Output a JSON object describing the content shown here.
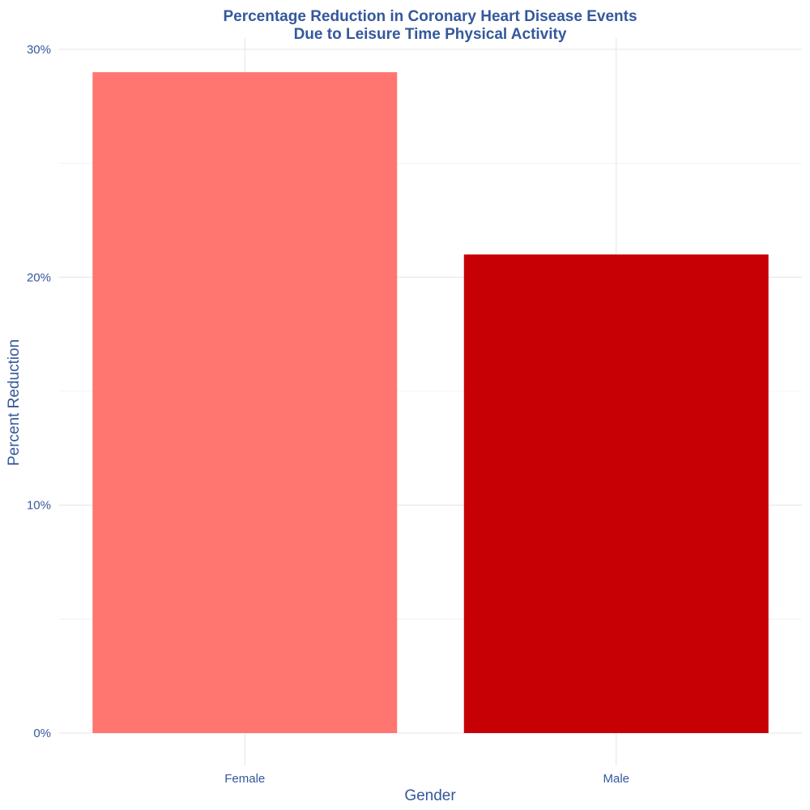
{
  "chart_data": {
    "type": "bar",
    "title_lines": [
      "Percentage Reduction in Coronary Heart Disease Events",
      "Due to Leisure Time Physical Activity"
    ],
    "xlabel": "Gender",
    "ylabel": "Percent Reduction",
    "categories": [
      "Female",
      "Male"
    ],
    "values": [
      29,
      21
    ],
    "bar_colors": [
      "#ff756f",
      "#c60005"
    ],
    "ylim": [
      0,
      30
    ],
    "y_ticks": [
      0,
      10,
      20,
      30
    ],
    "y_tick_labels": [
      "0%",
      "10%",
      "20%",
      "30%"
    ],
    "y_minor_ticks": [
      5,
      15,
      25
    ],
    "grid": true,
    "legend": "none"
  }
}
